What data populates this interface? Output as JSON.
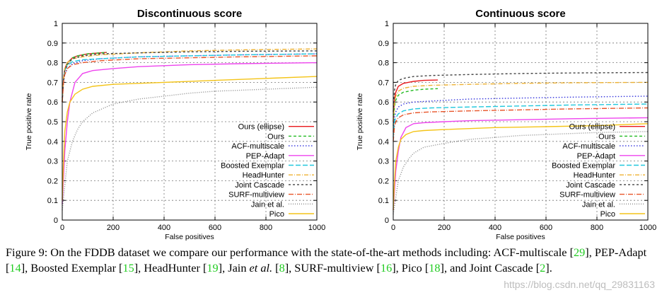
{
  "chart_data": [
    {
      "type": "line",
      "title": "Discontinuous score",
      "xlabel": "False positives",
      "ylabel": "True positive rate",
      "xlim": [
        0,
        1000
      ],
      "ylim": [
        0,
        1
      ],
      "xticks": [
        "0",
        "200",
        "400",
        "600",
        "800",
        "1000"
      ],
      "yticks": [
        "0",
        "0.1",
        "0.2",
        "0.3",
        "0.4",
        "0.5",
        "0.6",
        "0.7",
        "0.8",
        "0.9",
        "1"
      ],
      "grid": true,
      "legend_position": "bottom-right",
      "series": [
        {
          "name": "Ours (ellipse)",
          "color": "#e8171c",
          "dash": "",
          "x": [
            0,
            5,
            10,
            20,
            40,
            60,
            100,
            150,
            175
          ],
          "y": [
            0.62,
            0.72,
            0.77,
            0.8,
            0.825,
            0.835,
            0.845,
            0.85,
            0.852
          ]
        },
        {
          "name": "Ours",
          "color": "#22bb22",
          "dash": "4 3",
          "x": [
            0,
            5,
            10,
            20,
            40,
            60,
            100,
            150,
            175
          ],
          "y": [
            0.61,
            0.71,
            0.76,
            0.795,
            0.825,
            0.835,
            0.845,
            0.85,
            0.852
          ]
        },
        {
          "name": "ACF-multiscale",
          "color": "#3333dd",
          "dash": "1.5 2.5",
          "x": [
            0,
            5,
            10,
            20,
            40,
            80,
            150,
            300,
            500,
            700,
            1000
          ],
          "y": [
            0.6,
            0.7,
            0.74,
            0.77,
            0.795,
            0.81,
            0.82,
            0.83,
            0.835,
            0.84,
            0.845
          ]
        },
        {
          "name": "PEP-Adapt",
          "color": "#ee44ee",
          "dash": "",
          "x": [
            0,
            10,
            20,
            30,
            50,
            80,
            120,
            200,
            300,
            500,
            700,
            1000
          ],
          "y": [
            0.08,
            0.35,
            0.5,
            0.6,
            0.7,
            0.745,
            0.76,
            0.77,
            0.78,
            0.79,
            0.795,
            0.8
          ]
        },
        {
          "name": "Boosted Exemplar",
          "color": "#22c8dd",
          "dash": "7 3",
          "x": [
            0,
            5,
            10,
            20,
            40,
            80,
            150,
            300,
            500,
            700,
            1000
          ],
          "y": [
            0.62,
            0.72,
            0.76,
            0.785,
            0.805,
            0.815,
            0.82,
            0.83,
            0.835,
            0.84,
            0.845
          ]
        },
        {
          "name": "HeadHunter",
          "color": "#eeb233",
          "dash": "6 2 1 2",
          "x": [
            0,
            5,
            10,
            20,
            40,
            80,
            150,
            300,
            500,
            700,
            1000
          ],
          "y": [
            0.6,
            0.72,
            0.77,
            0.8,
            0.82,
            0.83,
            0.84,
            0.85,
            0.86,
            0.865,
            0.87
          ]
        },
        {
          "name": "Joint Cascade",
          "color": "#444444",
          "dash": "3 3",
          "x": [
            0,
            5,
            10,
            20,
            40,
            80,
            150,
            300,
            500,
            700,
            1000
          ],
          "y": [
            0.6,
            0.71,
            0.76,
            0.79,
            0.82,
            0.835,
            0.845,
            0.85,
            0.855,
            0.858,
            0.86
          ]
        },
        {
          "name": "SURF-multiview",
          "color": "#e8552a",
          "dash": "7 2 1 2",
          "x": [
            0,
            5,
            10,
            20,
            40,
            80,
            150,
            300,
            500,
            700,
            1000
          ],
          "y": [
            0.6,
            0.7,
            0.74,
            0.77,
            0.79,
            0.8,
            0.81,
            0.82,
            0.825,
            0.83,
            0.835
          ]
        },
        {
          "name": "Jain et al.",
          "color": "#888888",
          "dash": "1 2",
          "x": [
            0,
            20,
            40,
            60,
            80,
            120,
            200,
            300,
            400,
            500,
            600,
            700,
            800,
            1000
          ],
          "y": [
            0.05,
            0.3,
            0.4,
            0.46,
            0.5,
            0.545,
            0.59,
            0.615,
            0.63,
            0.645,
            0.655,
            0.66,
            0.665,
            0.675
          ]
        },
        {
          "name": "Pico",
          "color": "#f4c418",
          "dash": "",
          "x": [
            0,
            5,
            10,
            20,
            30,
            50,
            80,
            120,
            200,
            400,
            600,
            800,
            1000
          ],
          "y": [
            0.1,
            0.3,
            0.45,
            0.55,
            0.6,
            0.64,
            0.665,
            0.68,
            0.69,
            0.7,
            0.71,
            0.72,
            0.73
          ]
        }
      ]
    },
    {
      "type": "line",
      "title": "Continuous score",
      "xlabel": "False positives",
      "ylabel": "True positive rate",
      "xlim": [
        0,
        1000
      ],
      "ylim": [
        0,
        1
      ],
      "xticks": [
        "0",
        "200",
        "400",
        "600",
        "800",
        "1000"
      ],
      "yticks": [
        "0",
        "0.1",
        "0.2",
        "0.3",
        "0.4",
        "0.5",
        "0.6",
        "0.7",
        "0.8",
        "0.9",
        "1"
      ],
      "grid": true,
      "legend_position": "bottom-right",
      "series": [
        {
          "name": "Ours (ellipse)",
          "color": "#e8171c",
          "dash": "",
          "x": [
            0,
            5,
            10,
            20,
            40,
            80,
            120,
            175
          ],
          "y": [
            0.5,
            0.62,
            0.65,
            0.68,
            0.695,
            0.705,
            0.71,
            0.712
          ]
        },
        {
          "name": "Ours",
          "color": "#22bb22",
          "dash": "4 3",
          "x": [
            0,
            5,
            10,
            20,
            40,
            80,
            120,
            175
          ],
          "y": [
            0.48,
            0.58,
            0.61,
            0.635,
            0.65,
            0.66,
            0.665,
            0.668
          ]
        },
        {
          "name": "ACF-multiscale",
          "color": "#3333dd",
          "dash": "1.5 2.5",
          "x": [
            0,
            5,
            10,
            20,
            40,
            80,
            150,
            300,
            500,
            700,
            1000
          ],
          "y": [
            0.45,
            0.52,
            0.55,
            0.575,
            0.59,
            0.6,
            0.605,
            0.615,
            0.62,
            0.625,
            0.63
          ]
        },
        {
          "name": "PEP-Adapt",
          "color": "#ee44ee",
          "dash": "",
          "x": [
            0,
            10,
            20,
            30,
            50,
            80,
            120,
            200,
            300,
            500,
            700,
            1000
          ],
          "y": [
            0.05,
            0.25,
            0.35,
            0.42,
            0.47,
            0.49,
            0.495,
            0.5,
            0.505,
            0.51,
            0.515,
            0.52
          ]
        },
        {
          "name": "Boosted Exemplar",
          "color": "#22c8dd",
          "dash": "7 3",
          "x": [
            0,
            5,
            10,
            20,
            40,
            80,
            150,
            300,
            500,
            700,
            1000
          ],
          "y": [
            0.42,
            0.5,
            0.52,
            0.54,
            0.555,
            0.565,
            0.57,
            0.575,
            0.58,
            0.585,
            0.59
          ]
        },
        {
          "name": "HeadHunter",
          "color": "#eeb233",
          "dash": "6 2 1 2",
          "x": [
            0,
            5,
            10,
            20,
            40,
            80,
            150,
            300,
            500,
            700,
            1000
          ],
          "y": [
            0.5,
            0.6,
            0.63,
            0.655,
            0.67,
            0.68,
            0.685,
            0.69,
            0.695,
            0.698,
            0.7
          ]
        },
        {
          "name": "Joint Cascade",
          "color": "#444444",
          "dash": "3 3",
          "x": [
            0,
            5,
            10,
            20,
            40,
            80,
            150,
            300,
            500,
            700,
            1000
          ],
          "y": [
            0.55,
            0.66,
            0.69,
            0.71,
            0.72,
            0.73,
            0.735,
            0.74,
            0.745,
            0.748,
            0.75
          ]
        },
        {
          "name": "SURF-multiview",
          "color": "#e8552a",
          "dash": "7 2 1 2",
          "x": [
            0,
            5,
            10,
            20,
            40,
            80,
            150,
            300,
            500,
            700,
            1000
          ],
          "y": [
            0.4,
            0.48,
            0.5,
            0.52,
            0.535,
            0.545,
            0.55,
            0.555,
            0.56,
            0.565,
            0.57
          ]
        },
        {
          "name": "Jain et al.",
          "color": "#888888",
          "dash": "1 2",
          "x": [
            0,
            20,
            40,
            60,
            80,
            120,
            200,
            300,
            400,
            500,
            600,
            700,
            800,
            1000
          ],
          "y": [
            0.03,
            0.2,
            0.27,
            0.31,
            0.34,
            0.37,
            0.39,
            0.41,
            0.42,
            0.43,
            0.435,
            0.44,
            0.445,
            0.45
          ]
        },
        {
          "name": "Pico",
          "color": "#f4c418",
          "dash": "",
          "x": [
            0,
            5,
            10,
            20,
            30,
            50,
            80,
            120,
            200,
            400,
            600,
            800,
            1000
          ],
          "y": [
            0.05,
            0.2,
            0.3,
            0.37,
            0.41,
            0.435,
            0.45,
            0.455,
            0.46,
            0.47,
            0.475,
            0.48,
            0.49
          ]
        }
      ]
    }
  ],
  "caption": {
    "parts": [
      {
        "text": "Figure 9:  On the FDDB dataset we compare our performance with the state-of-the-art methods including: ACF-multiscale ",
        "ref": false
      },
      {
        "text": "[",
        "ref": false
      },
      {
        "text": "29",
        "ref": true
      },
      {
        "text": "], PEP-Adapt [",
        "ref": false
      },
      {
        "text": "14",
        "ref": true
      },
      {
        "text": "], Boosted Exemplar [",
        "ref": false
      },
      {
        "text": "15",
        "ref": true
      },
      {
        "text": "], HeadHunter [",
        "ref": false
      },
      {
        "text": "19",
        "ref": true
      },
      {
        "text": "], Jain ",
        "ref": false
      },
      {
        "text": "et al.",
        "ref": false,
        "italic": true
      },
      {
        "text": " [",
        "ref": false
      },
      {
        "text": "8",
        "ref": true
      },
      {
        "text": "], SURF-multiview [",
        "ref": false
      },
      {
        "text": "16",
        "ref": true
      },
      {
        "text": "], Pico [",
        "ref": false
      },
      {
        "text": "18",
        "ref": true
      },
      {
        "text": "], and Joint Cascade [",
        "ref": false
      },
      {
        "text": "2",
        "ref": true
      },
      {
        "text": "].",
        "ref": false
      }
    ]
  },
  "watermark": "https://blog.csdn.net/qq_29831163"
}
